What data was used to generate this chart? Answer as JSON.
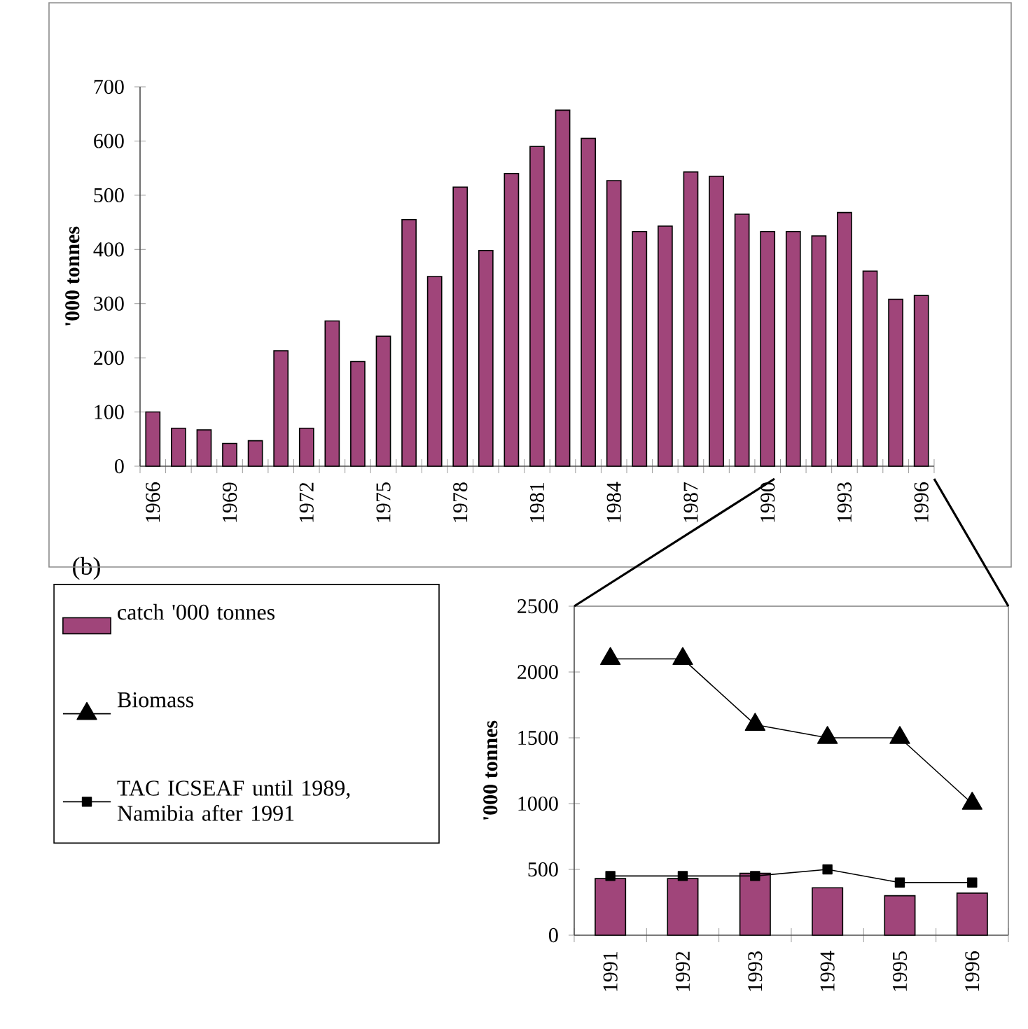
{
  "chart_data": [
    {
      "type": "bar",
      "ylabel": "'000 tonnes",
      "categories": [
        "1966",
        null,
        null,
        "1969",
        null,
        null,
        "1972",
        null,
        null,
        "1975",
        null,
        null,
        "1978",
        null,
        null,
        "1981",
        null,
        null,
        "1984",
        null,
        null,
        "1987",
        null,
        null,
        "1990",
        null,
        null,
        "1993",
        null,
        null,
        "1996"
      ],
      "values": [
        100,
        70,
        67,
        42,
        47,
        213,
        70,
        268,
        193,
        240,
        455,
        350,
        515,
        398,
        540,
        590,
        657,
        605,
        527,
        433,
        443,
        543,
        535,
        465,
        433,
        433,
        425,
        468,
        360,
        308,
        315
      ],
      "color": "#a0457a",
      "ylim": [
        0,
        700
      ],
      "yticks": [
        0,
        100,
        200,
        300,
        400,
        500,
        600,
        700
      ],
      "legend": false
    },
    {
      "type": "bar",
      "ylabel": "'000 tonnes",
      "annotations": [
        "(b)"
      ],
      "categories": [
        "1991",
        "1992",
        "1993",
        "1994",
        "1995",
        "1996"
      ],
      "series": [
        {
          "name": "catch '000 tonnes",
          "type": "bar",
          "color": "#a0457a",
          "values": [
            430,
            430,
            470,
            360,
            300,
            320
          ]
        },
        {
          "name": "Biomass",
          "type": "line",
          "color": "#000000",
          "marker": "triangle",
          "values": [
            2100,
            2100,
            1600,
            1500,
            1500,
            1000
          ]
        },
        {
          "name": "TAC ICSEAF until 1989, Namibia after 1991",
          "type": "line",
          "color": "#000000",
          "marker": "square",
          "values": [
            450,
            450,
            450,
            500,
            400,
            400
          ]
        }
      ],
      "ylim": [
        0,
        2500
      ],
      "yticks": [
        0,
        500,
        1000,
        1500,
        2000,
        2500
      ],
      "legend": "left"
    }
  ]
}
